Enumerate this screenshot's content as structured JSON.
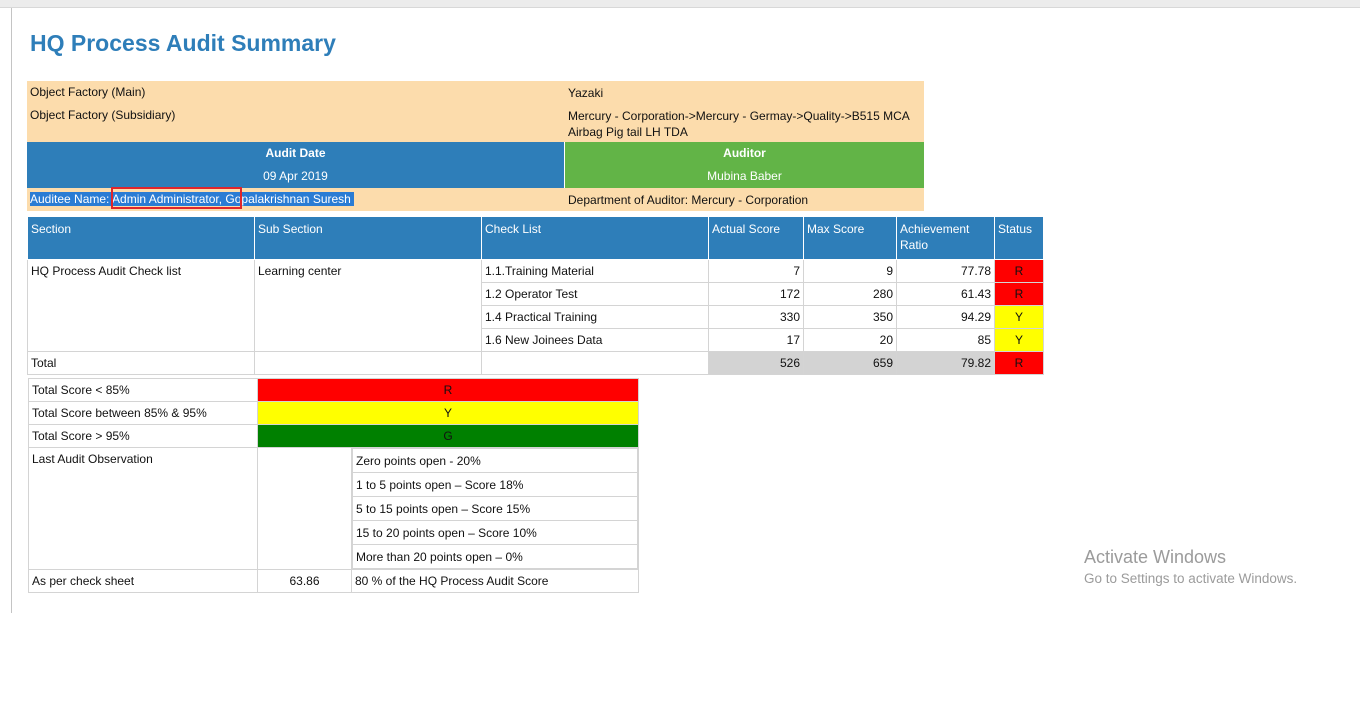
{
  "title": "HQ Process Audit Summary",
  "header": {
    "factory_main_label": "Object Factory (Main)",
    "factory_main_value": "Yazaki",
    "factory_sub_label": "Object Factory (Subsidiary)",
    "factory_sub_value": "Mercury - Corporation->Mercury - Germay->Quality->B515 MCA Airbag Pig tail LH TDA",
    "audit_date_label": "Audit Date",
    "audit_date_value": "09 Apr 2019",
    "auditor_label": "Auditor",
    "auditor_value": "Mubina Baber",
    "auditee_text": "Auditee Name: Admin Administrator, Gopalakrishnan Suresh ",
    "department_text": "Department of Auditor: Mercury - Corporation"
  },
  "colors": {
    "title": "#2e7eb9",
    "header_bg": "#fcdcac",
    "blue": "#2e7eb9",
    "green": "#62b447",
    "status_R": "#ff0000",
    "status_Y": "#ffff00",
    "status_G": "#008000",
    "highlight_box": "#e0262b"
  },
  "table": {
    "columns": [
      "Section",
      "Sub Section",
      "Check List",
      "Actual Score",
      "Max Score",
      "Achievement Ratio",
      "Status"
    ],
    "section": "HQ Process Audit Check list",
    "subsection": "Learning center",
    "rows": [
      {
        "item": "1.1.Training Material",
        "actual": "7",
        "max": "9",
        "ratio": "77.78",
        "status": "R"
      },
      {
        "item": "1.2 Operator Test",
        "actual": "172",
        "max": "280",
        "ratio": "61.43",
        "status": "R"
      },
      {
        "item": "1.4 Practical Training",
        "actual": "330",
        "max": "350",
        "ratio": "94.29",
        "status": "Y"
      },
      {
        "item": "1.6 New Joinees Data",
        "actual": "17",
        "max": "20",
        "ratio": "85",
        "status": "Y"
      }
    ],
    "total": {
      "label": "Total",
      "actual": "526",
      "max": "659",
      "ratio": "79.82",
      "status": "R"
    }
  },
  "legend": {
    "rules": [
      {
        "label": "Total Score < 85%",
        "status": "R"
      },
      {
        "label": "Total Score between 85% & 95%",
        "status": "Y"
      },
      {
        "label": "Total Score > 95%",
        "status": "G"
      }
    ],
    "observation_label": "Last Audit Observation",
    "observation_items": [
      "Zero points open - 20%",
      "1 to 5 points open – Score 18%",
      "5 to 15 points open – Score 15%",
      "15 to 20 points open – Score 10%",
      "More than 20 points open – 0%"
    ],
    "check_sheet_label": "As per check sheet",
    "check_sheet_value": "63.86",
    "check_sheet_note": "80 % of the HQ Process Audit Score"
  },
  "watermark": {
    "line1": "Activate Windows",
    "line2": "Go to Settings to activate Windows."
  }
}
